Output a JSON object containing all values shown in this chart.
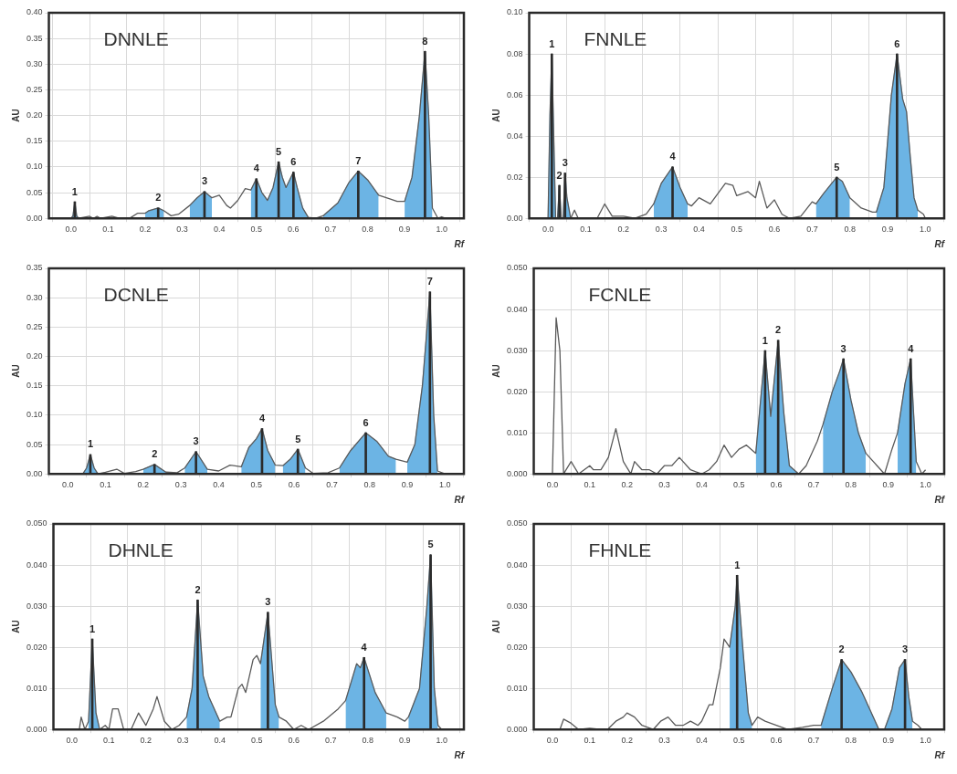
{
  "chart_data": [
    {
      "type": "line",
      "title": "DNNLE",
      "xlabel": "Rf",
      "ylabel": "AU",
      "grid": true,
      "marker": "none",
      "xlim": [
        -0.06,
        1.06
      ],
      "ylim": [
        0,
        0.4
      ],
      "xticks": [
        {
          "value": 0,
          "label": "0.0"
        },
        {
          "value": 0.1,
          "label": "0.1"
        },
        {
          "value": 0.2,
          "label": "0.2"
        },
        {
          "value": 0.3,
          "label": "0.3"
        },
        {
          "value": 0.4,
          "label": "0.4"
        },
        {
          "value": 0.5,
          "label": "0.5"
        },
        {
          "value": 0.6,
          "label": "0.6"
        },
        {
          "value": 0.7,
          "label": "0.7"
        },
        {
          "value": 0.8,
          "label": "0.8"
        },
        {
          "value": 0.9,
          "label": "0.9"
        },
        {
          "value": 1,
          "label": "1.0"
        }
      ],
      "yticks": [
        {
          "value": 0,
          "label": "0.00"
        },
        {
          "value": 0.05,
          "label": "0.05"
        },
        {
          "value": 0.1,
          "label": "0.10"
        },
        {
          "value": 0.15,
          "label": "0.15"
        },
        {
          "value": 0.2,
          "label": "0.20"
        },
        {
          "value": 0.25,
          "label": "0.25"
        },
        {
          "value": 0.3,
          "label": "0.30"
        },
        {
          "value": 0.35,
          "label": "0.35"
        },
        {
          "value": 0.4,
          "label": "0.40"
        }
      ],
      "x": [
        0,
        0.005,
        0.01,
        0.015,
        0.02,
        0.05,
        0.06,
        0.07,
        0.08,
        0.11,
        0.13,
        0.16,
        0.18,
        0.2,
        0.21,
        0.235,
        0.25,
        0.27,
        0.29,
        0.32,
        0.34,
        0.36,
        0.38,
        0.4,
        0.42,
        0.43,
        0.45,
        0.47,
        0.485,
        0.5,
        0.515,
        0.53,
        0.545,
        0.56,
        0.57,
        0.58,
        0.6,
        0.61,
        0.625,
        0.64,
        0.66,
        0.68,
        0.72,
        0.75,
        0.775,
        0.8,
        0.83,
        0.86,
        0.88,
        0.9,
        0.92,
        0.94,
        0.955,
        0.965,
        0.975,
        0.99,
        1.0,
        1.01
      ],
      "series": [
        {
          "type": "line",
          "color": "#5a5a5a",
          "values": [
            0,
            0.005,
            0.032,
            0.005,
            0,
            0.004,
            0,
            0.004,
            0,
            0.004,
            0,
            0.001,
            0.01,
            0.01,
            0.015,
            0.02,
            0.015,
            0.005,
            0.008,
            0.025,
            0.04,
            0.052,
            0.04,
            0.045,
            0.025,
            0.02,
            0.035,
            0.058,
            0.055,
            0.077,
            0.05,
            0.035,
            0.06,
            0.11,
            0.08,
            0.06,
            0.09,
            0.06,
            0.02,
            0.002,
            0,
            0.005,
            0.03,
            0.07,
            0.092,
            0.075,
            0.045,
            0.038,
            0.033,
            0.033,
            0.08,
            0.2,
            0.325,
            0.2,
            0.02,
            0,
            0.003,
            0
          ]
        },
        {
          "type": "area",
          "color": "#6cb4e4",
          "x": [
            0,
            0.005,
            0.01,
            0.015,
            0.02,
            0.1,
            0.2,
            0.21,
            0.235,
            0.25,
            0.29,
            0.32,
            0.34,
            0.36,
            0.38,
            0.43,
            0.485,
            0.5,
            0.515,
            0.53,
            0.545,
            0.56,
            0.57,
            0.58,
            0.6,
            0.61,
            0.625,
            0.64,
            0.66,
            0.68,
            0.72,
            0.75,
            0.775,
            0.8,
            0.83,
            0.86,
            0.9,
            0.92,
            0.94,
            0.955,
            0.965,
            0.975
          ],
          "values": [
            0,
            0.005,
            0.032,
            0.005,
            0,
            null,
            0.01,
            0.015,
            0.02,
            0.015,
            null,
            0.025,
            0.04,
            0.052,
            0.04,
            null,
            0.055,
            0.077,
            0.05,
            0.035,
            0.06,
            0.11,
            0.08,
            0.06,
            0.09,
            0.06,
            0.02,
            0.002,
            null,
            0.005,
            0.03,
            0.07,
            0.092,
            0.075,
            0.045,
            null,
            0.033,
            0.08,
            0.2,
            0.325,
            0.2,
            0.02
          ]
        },
        {
          "type": "bar",
          "color": "#2b2b2b",
          "x": [
            0.01,
            0.235,
            0.36,
            0.5,
            0.56,
            0.6,
            0.775,
            0.955
          ],
          "values": [
            0.032,
            0.02,
            0.052,
            0.077,
            0.11,
            0.09,
            0.092,
            0.325
          ]
        }
      ],
      "annotations": [
        {
          "text": "1",
          "x": 0.01,
          "y": 0.032
        },
        {
          "text": "2",
          "x": 0.235,
          "y": 0.02
        },
        {
          "text": "3",
          "x": 0.36,
          "y": 0.052
        },
        {
          "text": "4",
          "x": 0.5,
          "y": 0.077
        },
        {
          "text": "5",
          "x": 0.56,
          "y": 0.11
        },
        {
          "text": "6",
          "x": 0.6,
          "y": 0.09
        },
        {
          "text": "7",
          "x": 0.775,
          "y": 0.092
        },
        {
          "text": "8",
          "x": 0.955,
          "y": 0.325
        }
      ]
    },
    {
      "type": "line",
      "title": "FNNLE",
      "xlabel": "Rf",
      "ylabel": "AU",
      "grid": true,
      "marker": "none",
      "xlim": [
        -0.05,
        1.05
      ],
      "ylim": [
        0,
        0.1
      ],
      "xticks": [
        {
          "value": 0,
          "label": "0.0"
        },
        {
          "value": 0.1,
          "label": "0.1"
        },
        {
          "value": 0.2,
          "label": "0.2"
        },
        {
          "value": 0.3,
          "label": "0.3"
        },
        {
          "value": 0.4,
          "label": "0.4"
        },
        {
          "value": 0.5,
          "label": "0.5"
        },
        {
          "value": 0.6,
          "label": "0.6"
        },
        {
          "value": 0.7,
          "label": "0.7"
        },
        {
          "value": 0.8,
          "label": "0.8"
        },
        {
          "value": 0.9,
          "label": "0.9"
        },
        {
          "value": 1,
          "label": "1.0"
        }
      ],
      "yticks": [
        {
          "value": 0,
          "label": "0.00"
        },
        {
          "value": 0.02,
          "label": "0.02"
        },
        {
          "value": 0.04,
          "label": "0.04"
        },
        {
          "value": 0.06,
          "label": "0.06"
        },
        {
          "value": 0.08,
          "label": "0.08"
        },
        {
          "value": 0.1,
          "label": "0.10"
        }
      ],
      "x": [
        0,
        0.005,
        0.01,
        0.015,
        0.02,
        0.025,
        0.03,
        0.035,
        0.04,
        0.045,
        0.05,
        0.06,
        0.07,
        0.08,
        0.1,
        0.13,
        0.15,
        0.17,
        0.2,
        0.23,
        0.26,
        0.28,
        0.3,
        0.33,
        0.35,
        0.37,
        0.38,
        0.4,
        0.43,
        0.45,
        0.47,
        0.49,
        0.5,
        0.53,
        0.55,
        0.56,
        0.58,
        0.6,
        0.62,
        0.64,
        0.67,
        0.7,
        0.71,
        0.73,
        0.765,
        0.78,
        0.8,
        0.83,
        0.86,
        0.87,
        0.89,
        0.91,
        0.925,
        0.94,
        0.95,
        0.96,
        0.97,
        0.98,
        0.995,
        1.0
      ],
      "series": [
        {
          "type": "line",
          "color": "#5a5a5a",
          "values": [
            0,
            0.05,
            0.08,
            0.04,
            0,
            0,
            0.016,
            0,
            0,
            0.022,
            0.01,
            0,
            0.004,
            0,
            0,
            0,
            0.007,
            0.001,
            0.001,
            0,
            0.002,
            0.007,
            0.017,
            0.025,
            0.015,
            0.007,
            0.006,
            0.01,
            0.007,
            0.012,
            0.017,
            0.016,
            0.011,
            0.013,
            0.01,
            0.018,
            0.005,
            0.009,
            0.002,
            0,
            0.001,
            0.008,
            0.007,
            0.012,
            0.02,
            0.018,
            0.01,
            0.005,
            0.003,
            0.003,
            0.015,
            0.06,
            0.08,
            0.058,
            0.052,
            0.03,
            0.01,
            0.004,
            0.002,
            0
          ]
        },
        {
          "type": "area",
          "color": "#6cb4e4",
          "x": [
            0,
            0.005,
            0.01,
            0.015,
            0.02,
            0.025,
            0.03,
            0.035,
            0.04,
            0.045,
            0.05,
            0.06,
            0.15,
            0.28,
            0.3,
            0.33,
            0.35,
            0.37,
            0.5,
            0.71,
            0.73,
            0.765,
            0.78,
            0.8,
            0.83,
            0.87,
            0.89,
            0.91,
            0.925,
            0.94,
            0.95,
            0.96,
            0.97,
            0.98
          ],
          "values": [
            0,
            0.05,
            0.08,
            0.04,
            0,
            0,
            0.016,
            0,
            0,
            0.022,
            0.01,
            0,
            null,
            0.007,
            0.017,
            0.025,
            0.015,
            0.007,
            null,
            0.007,
            0.012,
            0.02,
            0.018,
            0.01,
            null,
            0.003,
            0.015,
            0.06,
            0.08,
            0.058,
            0.052,
            0.03,
            0.01,
            0.004
          ]
        },
        {
          "type": "bar",
          "color": "#2b2b2b",
          "x": [
            0.01,
            0.03,
            0.045,
            0.33,
            0.765,
            0.925
          ],
          "values": [
            0.08,
            0.016,
            0.022,
            0.025,
            0.02,
            0.08
          ]
        }
      ],
      "annotations": [
        {
          "text": "1",
          "x": 0.01,
          "y": 0.08
        },
        {
          "text": "2",
          "x": 0.03,
          "y": 0.016
        },
        {
          "text": "3",
          "x": 0.045,
          "y": 0.022
        },
        {
          "text": "4",
          "x": 0.33,
          "y": 0.025
        },
        {
          "text": "5",
          "x": 0.765,
          "y": 0.02
        },
        {
          "text": "6",
          "x": 0.925,
          "y": 0.08
        }
      ]
    },
    {
      "type": "line",
      "title": "DCNLE",
      "xlabel": "Rf",
      "ylabel": "AU",
      "grid": true,
      "marker": "none",
      "xlim": [
        -0.05,
        1.05
      ],
      "ylim": [
        0,
        0.35
      ],
      "xticks": [
        {
          "value": 0,
          "label": "0.0"
        },
        {
          "value": 0.1,
          "label": "0.1"
        },
        {
          "value": 0.2,
          "label": "0.2"
        },
        {
          "value": 0.3,
          "label": "0.3"
        },
        {
          "value": 0.4,
          "label": "0.4"
        },
        {
          "value": 0.5,
          "label": "0.5"
        },
        {
          "value": 0.6,
          "label": "0.6"
        },
        {
          "value": 0.7,
          "label": "0.7"
        },
        {
          "value": 0.8,
          "label": "0.8"
        },
        {
          "value": 0.9,
          "label": "0.9"
        },
        {
          "value": 1,
          "label": "1.0"
        }
      ],
      "yticks": [
        {
          "value": 0,
          "label": "0.00"
        },
        {
          "value": 0.05,
          "label": "0.05"
        },
        {
          "value": 0.1,
          "label": "0.10"
        },
        {
          "value": 0.15,
          "label": "0.15"
        },
        {
          "value": 0.2,
          "label": "0.20"
        },
        {
          "value": 0.25,
          "label": "0.25"
        },
        {
          "value": 0.3,
          "label": "0.30"
        },
        {
          "value": 0.35,
          "label": "0.35"
        }
      ],
      "x": [
        0,
        0.03,
        0.04,
        0.05,
        0.06,
        0.07,
        0.08,
        0.1,
        0.13,
        0.15,
        0.18,
        0.2,
        0.23,
        0.26,
        0.29,
        0.31,
        0.34,
        0.37,
        0.4,
        0.43,
        0.46,
        0.48,
        0.5,
        0.515,
        0.53,
        0.55,
        0.57,
        0.59,
        0.61,
        0.63,
        0.65,
        0.69,
        0.72,
        0.75,
        0.79,
        0.82,
        0.85,
        0.87,
        0.9,
        0.92,
        0.94,
        0.96,
        0.97,
        0.98,
        1.0
      ],
      "series": [
        {
          "type": "line",
          "color": "#5a5a5a",
          "values": [
            0,
            0.001,
            0,
            0.01,
            0.033,
            0.01,
            0,
            0.003,
            0.008,
            0.001,
            0.004,
            0.008,
            0.016,
            0.003,
            0.002,
            0.01,
            0.038,
            0.008,
            0.005,
            0.015,
            0.012,
            0.045,
            0.06,
            0.077,
            0.04,
            0.015,
            0.014,
            0.025,
            0.042,
            0.01,
            0.001,
            0.002,
            0.01,
            0.04,
            0.07,
            0.055,
            0.03,
            0.025,
            0.02,
            0.05,
            0.15,
            0.31,
            0.1,
            0.005,
            0
          ]
        },
        {
          "type": "area",
          "color": "#6cb4e4",
          "x": [
            0.04,
            0.05,
            0.06,
            0.07,
            0.08,
            0.15,
            0.2,
            0.23,
            0.26,
            0.29,
            0.31,
            0.34,
            0.37,
            0.43,
            0.46,
            0.48,
            0.5,
            0.515,
            0.53,
            0.55,
            0.56,
            0.57,
            0.59,
            0.61,
            0.63,
            0.69,
            0.72,
            0.75,
            0.79,
            0.82,
            0.85,
            0.87,
            0.885,
            0.9,
            0.92,
            0.94,
            0.96,
            0.97,
            0.98
          ],
          "values": [
            0,
            0.01,
            0.033,
            0.01,
            0,
            null,
            0.008,
            0.016,
            0.003,
            null,
            0.01,
            0.038,
            0.008,
            null,
            0.012,
            0.045,
            0.06,
            0.077,
            0.04,
            0.015,
            null,
            0.014,
            0.025,
            0.042,
            0.01,
            null,
            0.01,
            0.04,
            0.07,
            0.055,
            0.03,
            0.025,
            null,
            0.02,
            0.05,
            0.15,
            0.31,
            0.1,
            0.005
          ]
        },
        {
          "type": "bar",
          "color": "#2b2b2b",
          "x": [
            0.06,
            0.23,
            0.34,
            0.515,
            0.61,
            0.79,
            0.96
          ],
          "values": [
            0.033,
            0.016,
            0.038,
            0.077,
            0.042,
            0.07,
            0.31
          ]
        }
      ],
      "annotations": [
        {
          "text": "1",
          "x": 0.06,
          "y": 0.033
        },
        {
          "text": "2",
          "x": 0.23,
          "y": 0.016
        },
        {
          "text": "3",
          "x": 0.34,
          "y": 0.038
        },
        {
          "text": "4",
          "x": 0.515,
          "y": 0.077
        },
        {
          "text": "5",
          "x": 0.61,
          "y": 0.042
        },
        {
          "text": "6",
          "x": 0.79,
          "y": 0.07
        },
        {
          "text": "7",
          "x": 0.96,
          "y": 0.31
        }
      ]
    },
    {
      "type": "line",
      "title": "FCNLE",
      "xlabel": "Rf",
      "ylabel": "AU",
      "grid": true,
      "marker": "none",
      "xlim": [
        -0.05,
        1.05
      ],
      "ylim": [
        0,
        0.05
      ],
      "xticks": [
        {
          "value": 0,
          "label": "0.0"
        },
        {
          "value": 0.1,
          "label": "0.1"
        },
        {
          "value": 0.2,
          "label": "0.2"
        },
        {
          "value": 0.3,
          "label": "0.3"
        },
        {
          "value": 0.4,
          "label": "0.4"
        },
        {
          "value": 0.5,
          "label": "0.5"
        },
        {
          "value": 0.6,
          "label": "0.6"
        },
        {
          "value": 0.7,
          "label": "0.7"
        },
        {
          "value": 0.8,
          "label": "0.8"
        },
        {
          "value": 0.9,
          "label": "0.9"
        },
        {
          "value": 1,
          "label": "1.0"
        }
      ],
      "yticks": [
        {
          "value": 0,
          "label": "0.000"
        },
        {
          "value": 0.01,
          "label": "0.010"
        },
        {
          "value": 0.02,
          "label": "0.020"
        },
        {
          "value": 0.03,
          "label": "0.030"
        },
        {
          "value": 0.04,
          "label": "0.040"
        },
        {
          "value": 0.05,
          "label": "0.050"
        }
      ],
      "x": [
        0,
        0.01,
        0.02,
        0.03,
        0.05,
        0.07,
        0.1,
        0.11,
        0.13,
        0.15,
        0.17,
        0.19,
        0.21,
        0.22,
        0.24,
        0.26,
        0.28,
        0.3,
        0.32,
        0.34,
        0.37,
        0.4,
        0.42,
        0.44,
        0.46,
        0.48,
        0.5,
        0.52,
        0.545,
        0.555,
        0.57,
        0.585,
        0.605,
        0.62,
        0.635,
        0.66,
        0.68,
        0.71,
        0.725,
        0.75,
        0.77,
        0.78,
        0.8,
        0.82,
        0.84,
        0.87,
        0.89,
        0.91,
        0.925,
        0.945,
        0.96,
        0.975,
        0.99,
        1.0
      ],
      "series": [
        {
          "type": "line",
          "color": "#5a5a5a",
          "values": [
            0,
            0.038,
            0.03,
            0,
            0.003,
            0,
            0.002,
            0.001,
            0.001,
            0.004,
            0.011,
            0.003,
            0,
            0.003,
            0.001,
            0.001,
            0,
            0.002,
            0.002,
            0.004,
            0.001,
            0,
            0.001,
            0.003,
            0.007,
            0.004,
            0.006,
            0.007,
            0.005,
            0.015,
            0.03,
            0.014,
            0.0325,
            0.015,
            0.002,
            0,
            0.002,
            0.008,
            0.012,
            0.02,
            0.025,
            0.028,
            0.018,
            0.01,
            0.005,
            0.002,
            0,
            0.006,
            0.01,
            0.022,
            0.028,
            0.003,
            0,
            0.001
          ]
        },
        {
          "type": "area",
          "color": "#6cb4e4",
          "x": [
            0.545,
            0.555,
            0.57,
            0.585,
            0.605,
            0.62,
            0.635,
            0.66,
            0.68,
            0.725,
            0.75,
            0.77,
            0.78,
            0.8,
            0.82,
            0.84,
            0.87,
            0.925,
            0.945,
            0.96,
            0.975
          ],
          "values": [
            0.005,
            0.015,
            0.03,
            0.014,
            0.0325,
            0.015,
            0.002,
            0,
            null,
            0.012,
            0.02,
            0.025,
            0.028,
            0.018,
            0.01,
            0.005,
            null,
            0.01,
            0.022,
            0.028,
            0.003
          ]
        },
        {
          "type": "bar",
          "color": "#2b2b2b",
          "x": [
            0.57,
            0.605,
            0.78,
            0.96
          ],
          "values": [
            0.03,
            0.0325,
            0.028,
            0.028
          ]
        }
      ],
      "annotations": [
        {
          "text": "1",
          "x": 0.57,
          "y": 0.03
        },
        {
          "text": "2",
          "x": 0.605,
          "y": 0.0325
        },
        {
          "text": "3",
          "x": 0.78,
          "y": 0.028
        },
        {
          "text": "4",
          "x": 0.96,
          "y": 0.028
        }
      ]
    },
    {
      "type": "line",
      "title": "DHNLE",
      "xlabel": "Rf",
      "ylabel": "AU",
      "grid": true,
      "marker": "none",
      "xlim": [
        -0.05,
        1.06
      ],
      "ylim": [
        0,
        0.05
      ],
      "xticks": [
        {
          "value": 0,
          "label": "0.0"
        },
        {
          "value": 0.1,
          "label": "0.1"
        },
        {
          "value": 0.2,
          "label": "0.2"
        },
        {
          "value": 0.3,
          "label": "0.3"
        },
        {
          "value": 0.4,
          "label": "0.4"
        },
        {
          "value": 0.5,
          "label": "0.5"
        },
        {
          "value": 0.6,
          "label": "0.6"
        },
        {
          "value": 0.7,
          "label": "0.7"
        },
        {
          "value": 0.8,
          "label": "0.8"
        },
        {
          "value": 0.9,
          "label": "0.9"
        },
        {
          "value": 1,
          "label": "1.0"
        }
      ],
      "yticks": [
        {
          "value": 0,
          "label": "0.000"
        },
        {
          "value": 0.01,
          "label": "0.010"
        },
        {
          "value": 0.02,
          "label": "0.020"
        },
        {
          "value": 0.03,
          "label": "0.030"
        },
        {
          "value": 0.04,
          "label": "0.040"
        },
        {
          "value": 0.05,
          "label": "0.050"
        }
      ],
      "x": [
        0,
        0.02,
        0.025,
        0.035,
        0.045,
        0.055,
        0.065,
        0.075,
        0.09,
        0.1,
        0.11,
        0.125,
        0.14,
        0.16,
        0.17,
        0.18,
        0.2,
        0.22,
        0.23,
        0.25,
        0.27,
        0.29,
        0.31,
        0.325,
        0.34,
        0.355,
        0.37,
        0.39,
        0.4,
        0.42,
        0.43,
        0.45,
        0.46,
        0.47,
        0.49,
        0.5,
        0.51,
        0.53,
        0.55,
        0.56,
        0.58,
        0.6,
        0.62,
        0.64,
        0.68,
        0.72,
        0.74,
        0.77,
        0.78,
        0.79,
        0.82,
        0.85,
        0.88,
        0.9,
        0.91,
        0.94,
        0.96,
        0.97,
        0.98,
        0.99,
        1.0
      ],
      "series": [
        {
          "type": "line",
          "color": "#5a5a5a",
          "values": [
            0,
            0,
            0.003,
            0,
            0.002,
            0.022,
            0.004,
            0,
            0.001,
            0,
            0.005,
            0.005,
            0,
            0,
            0.002,
            0.004,
            0.001,
            0.005,
            0.008,
            0.002,
            0,
            0.001,
            0.003,
            0.01,
            0.0315,
            0.013,
            0.008,
            0.004,
            0.002,
            0.003,
            0.003,
            0.01,
            0.011,
            0.009,
            0.017,
            0.018,
            0.016,
            0.0285,
            0.006,
            0.003,
            0.002,
            0,
            0.001,
            0,
            0.002,
            0.005,
            0.007,
            0.016,
            0.015,
            0.0175,
            0.009,
            0.004,
            0.003,
            0.002,
            0.003,
            0.01,
            0.03,
            0.0425,
            0.01,
            0.001,
            0
          ]
        },
        {
          "type": "area",
          "color": "#6cb4e4",
          "x": [
            0.045,
            0.055,
            0.065,
            0.075,
            0.2,
            0.31,
            0.325,
            0.34,
            0.355,
            0.37,
            0.39,
            0.4,
            0.45,
            0.51,
            0.53,
            0.55,
            0.56,
            0.64,
            0.74,
            0.77,
            0.78,
            0.79,
            0.82,
            0.85,
            0.88,
            0.91,
            0.94,
            0.96,
            0.97,
            0.98,
            0.99
          ],
          "values": [
            0.002,
            0.022,
            0.004,
            0,
            null,
            0.003,
            0.01,
            0.0315,
            0.013,
            0.008,
            0.004,
            0.002,
            null,
            0.016,
            0.0285,
            0.006,
            0.003,
            null,
            0.007,
            0.016,
            0.015,
            0.0175,
            0.009,
            0.004,
            null,
            0.003,
            0.01,
            0.03,
            0.0425,
            0.01,
            0.001
          ]
        },
        {
          "type": "bar",
          "color": "#2b2b2b",
          "x": [
            0.055,
            0.34,
            0.53,
            0.79,
            0.97
          ],
          "values": [
            0.022,
            0.0315,
            0.0285,
            0.0175,
            0.0425
          ]
        }
      ],
      "annotations": [
        {
          "text": "1",
          "x": 0.055,
          "y": 0.022
        },
        {
          "text": "2",
          "x": 0.34,
          "y": 0.0315
        },
        {
          "text": "3",
          "x": 0.53,
          "y": 0.0285
        },
        {
          "text": "4",
          "x": 0.79,
          "y": 0.0175
        },
        {
          "text": "5",
          "x": 0.97,
          "y": 0.0425
        }
      ]
    },
    {
      "type": "line",
      "title": "FHNLE",
      "xlabel": "Rf",
      "ylabel": "AU",
      "grid": true,
      "marker": "none",
      "xlim": [
        -0.05,
        1.05
      ],
      "ylim": [
        0,
        0.05
      ],
      "xticks": [
        {
          "value": 0,
          "label": "0.0"
        },
        {
          "value": 0.1,
          "label": "0.1"
        },
        {
          "value": 0.2,
          "label": "0.2"
        },
        {
          "value": 0.3,
          "label": "0.3"
        },
        {
          "value": 0.4,
          "label": "0.4"
        },
        {
          "value": 0.5,
          "label": "0.5"
        },
        {
          "value": 0.6,
          "label": "0.6"
        },
        {
          "value": 0.7,
          "label": "0.7"
        },
        {
          "value": 0.8,
          "label": "0.8"
        },
        {
          "value": 0.9,
          "label": "0.9"
        },
        {
          "value": 1,
          "label": "1.0"
        }
      ],
      "yticks": [
        {
          "value": 0,
          "label": "0.000"
        },
        {
          "value": 0.01,
          "label": "0.010"
        },
        {
          "value": 0.02,
          "label": "0.020"
        },
        {
          "value": 0.03,
          "label": "0.030"
        },
        {
          "value": 0.04,
          "label": "0.040"
        },
        {
          "value": 0.05,
          "label": "0.050"
        }
      ],
      "x": [
        0,
        0.02,
        0.03,
        0.05,
        0.07,
        0.1,
        0.13,
        0.15,
        0.17,
        0.19,
        0.2,
        0.22,
        0.24,
        0.27,
        0.29,
        0.31,
        0.33,
        0.35,
        0.37,
        0.39,
        0.4,
        0.42,
        0.43,
        0.45,
        0.46,
        0.475,
        0.49,
        0.495,
        0.51,
        0.525,
        0.535,
        0.55,
        0.57,
        0.6,
        0.63,
        0.67,
        0.7,
        0.72,
        0.75,
        0.775,
        0.8,
        0.83,
        0.86,
        0.875,
        0.89,
        0.91,
        0.93,
        0.945,
        0.955,
        0.965,
        0.98,
        0.99
      ],
      "series": [
        {
          "type": "line",
          "color": "#5a5a5a",
          "values": [
            0,
            0,
            0.0025,
            0.0015,
            0,
            0.0003,
            0,
            0.0002,
            0.002,
            0.003,
            0.004,
            0.003,
            0.001,
            0,
            0.002,
            0.003,
            0.001,
            0.001,
            0.002,
            0.001,
            0.002,
            0.006,
            0.006,
            0.015,
            0.022,
            0.02,
            0.03,
            0.0375,
            0.02,
            0.004,
            0.001,
            0.003,
            0.002,
            0.001,
            0,
            0.0005,
            0.001,
            0.001,
            0.01,
            0.017,
            0.014,
            0.009,
            0.003,
            0,
            0,
            0.005,
            0.015,
            0.017,
            0.008,
            0.002,
            0.001,
            0
          ]
        },
        {
          "type": "area",
          "color": "#6cb4e4",
          "x": [
            0.475,
            0.49,
            0.495,
            0.51,
            0.525,
            0.535,
            0.63,
            0.72,
            0.75,
            0.775,
            0.8,
            0.83,
            0.86,
            0.875,
            0.88,
            0.89,
            0.91,
            0.93,
            0.945,
            0.955,
            0.965
          ],
          "values": [
            0.02,
            0.03,
            0.0375,
            0.02,
            0.004,
            0.001,
            null,
            0.001,
            0.01,
            0.017,
            0.014,
            0.009,
            0.003,
            0,
            null,
            0,
            0.005,
            0.015,
            0.017,
            0.008,
            0.002
          ]
        },
        {
          "type": "bar",
          "color": "#2b2b2b",
          "x": [
            0.495,
            0.775,
            0.945
          ],
          "values": [
            0.0375,
            0.017,
            0.017
          ]
        }
      ],
      "annotations": [
        {
          "text": "1",
          "x": 0.495,
          "y": 0.0375
        },
        {
          "text": "2",
          "x": 0.775,
          "y": 0.017
        },
        {
          "text": "3",
          "x": 0.945,
          "y": 0.017
        }
      ]
    }
  ]
}
